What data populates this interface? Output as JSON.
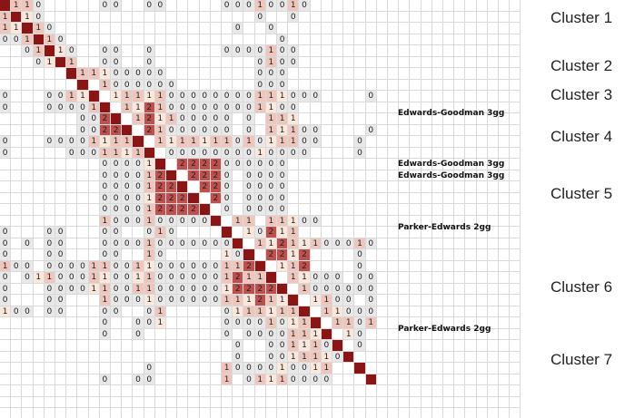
{
  "clusters": [
    {
      "label": "Cluster 1"
    },
    {
      "label": "Cluster 2"
    },
    {
      "label": "Cluster 3"
    },
    {
      "label": "Cluster 4"
    },
    {
      "label": "Cluster 5"
    },
    {
      "label": "Cluster 6"
    },
    {
      "label": "Cluster 7"
    }
  ],
  "row_labels": [
    {
      "row": 9,
      "text": "Edwards-Goodman 3gg"
    },
    {
      "row": 14,
      "text": "Edwards-Goodman 3gg"
    },
    {
      "row": 15,
      "text": "Edwards-Goodman 3gg"
    },
    {
      "row": 20,
      "text": "Parker-Edwards 2gg"
    },
    {
      "row": 29,
      "text": "Parker-Edwards 2gg"
    }
  ],
  "colors": {
    "diagonal": "#8b1414",
    "strong": "#c0504d",
    "medium": "#d99a8f",
    "light": "#efc6bb",
    "pale": "#fbe8dc",
    "neutral": "#e8e8e8",
    "gridline": "#d9d9d9"
  },
  "matrix_rows": [
    ". 1 1 0 . . . . . 0 0 . . 0 0 . . . . . 0 0 0 1 0 0 1 0 . . . . . . .",
    "1 . 1 0 . . . . . . . . . . . . . . . . . . . 0 . . 0 . . . . . . . .",
    "1 1 . 1 0 . . . . . . . . . . . . . . . . 0 . . 0 . . . . . . . . . .",
    "0 0 1 . 1 0 . . . . . . . . . . . . . . . . . . . 0 . . . . . . . . .",
    ". . 0 1 . 1 0 . . 0 0 . . 0 . . . . . . 0 0 0 0 1 0 0 . . . . . . . .",
    ". . . 0 1 . 1 . . 0 0 . . 0 . . . . . . . . . 0 1 0 0 . . . . . . . .",
    ". . . . . . . 1 1 1 0 0 0 0 0 . . . . . . . . 0 0 0 . . . . . . . . .",
    ". . . . . . . 1 . 1 0 0 0 0 0 0 . . . . . . . 0 0 0 . . . . . . . . .",
    "0 . . . 0 0 1 1 1 . 1 1 1 1 1 0 0 0 0 0 0 0 0 1 1 1 0 0 0 . . . . 0 .",
    "0 . . . 0 0 0 0 1 2 . 1 1 2 1 0 0 0 0 0 0 0 0 1 1 0 0 . . . . . . . .",
    ". . . . . . . 0 0 2 2 . 1 2 1 1 0 0 0 0 0 . 0 . 1 1 1 . . . . . . . .",
    ". . . . . . . 0 0 2 2 1 . 2 1 0 0 0 0 0 0 . 0 . 1 1 1 0 0 . . . . 0 .",
    "0 . . . 0 0 0 0 1 1 1 1 1 . 1 1 1 1 1 1 1 0 1 0 1 1 1 0 0 . . . 0 . .",
    "0 . . . . . 0 0 0 1 1 1 1 1 . 0 0 0 0 0 0 0 0 1 0 0 0 0 . . . . 0 . .",
    ". . . . . . . . . 0 0 0 0 1 2 . 2 2 2 2 0 0 0 0 0 0 . . . . . . . . .",
    ". . . . . . . . . 0 0 0 0 1 2 2 . 2 2 2 0 . 0 0 0 0 . . . . . . . . .",
    ". . . . . . . . . 0 0 0 0 1 2 2 2 . 2 2 0 . 0 0 0 0 . . . . . . . . .",
    ". . . . . . . . . 0 0 0 0 1 2 2 2 2 . 2 0 . 0 0 0 0 . . . . . . . . .",
    ". . . . . . . . . 0 0 0 0 1 2 2 2 2 2 . 0 . 0 0 0 0 . . . . . . . . .",
    ". . . . . . . . . 1 0 0 0 1 0 0 0 0 0 0 . 1 1 . 1 1 1 0 0 . . . . . .",
    "0 . . . 0 0 . . . 0 0 . . 0 1 0 . . . . 1 . 1 0 2 1 1 . . . . . . . .",
    "0 . 0 . 0 0 . . . 0 0 0 0 1 0 0 0 0 0 0 0 1 . 1 1 2 1 1 1 0 0 0 1 0 .",
    "0 . . . 0 0 . . . 0 0 . . 1 0 . . . . . 1 0 2 . 2 2 1 2 . . . . 0 . .",
    "1 0 0 . 0 0 0 0 1 1 0 0 1 1 0 0 0 0 0 0 1 1 2 2 . 1 1 2 . . . . 0 . .",
    "0 . 0 1 1 0 0 0 1 1 0 0 1 1 0 0 0 0 0 0 1 2 1 1 1 . 1 1 0 0 0 . 0 0 .",
    "0 . . . 0 0 0 0 1 1 0 0 1 1 0 0 0 0 0 0 1 2 2 2 2 1 . 1 0 0 0 0 0 0 .",
    "0 . . . 0 0 . . . 1 0 0 0 1 0 0 0 0 0 0 1 1 1 2 1 1 1 . 1 1 0 0 . 0 .",
    "1 0 0 . 0 0 . . . 0 0 . . 0 1 . . . . . 0 1 1 1 1 1 1 1 . 1 1 0 0 0 .",
    ". . . . . . . . . 0 . . 0 0 1 . . . . . 0 0 0 0 1 0 1 1 1 . 1 1 0 1 .",
    ". . . . . . . . . 0 . . 0 . . . . . . . 0 . 0 0 0 0 1 1 1 1 . 1 0 . .",
    ". . . . . . . . . . . . . . . . . . . . . 0 . . 0 0 1 1 1 0 1 . 0 . .",
    ". . . . . . . . . . . . . . . . . . . . . 0 . . 0 0 1 1 1 1 0 1 . . .",
    ". . . . . . . . . . . . . 0 . . . . . . 1 0 0 0 0 1 0 0 1 1 . . . . .",
    ". . . . . . . . . 0 . . 0 0 . . . . . . 1 . 0 1 1 1 0 0 0 0 . . . . ."
  ]
}
